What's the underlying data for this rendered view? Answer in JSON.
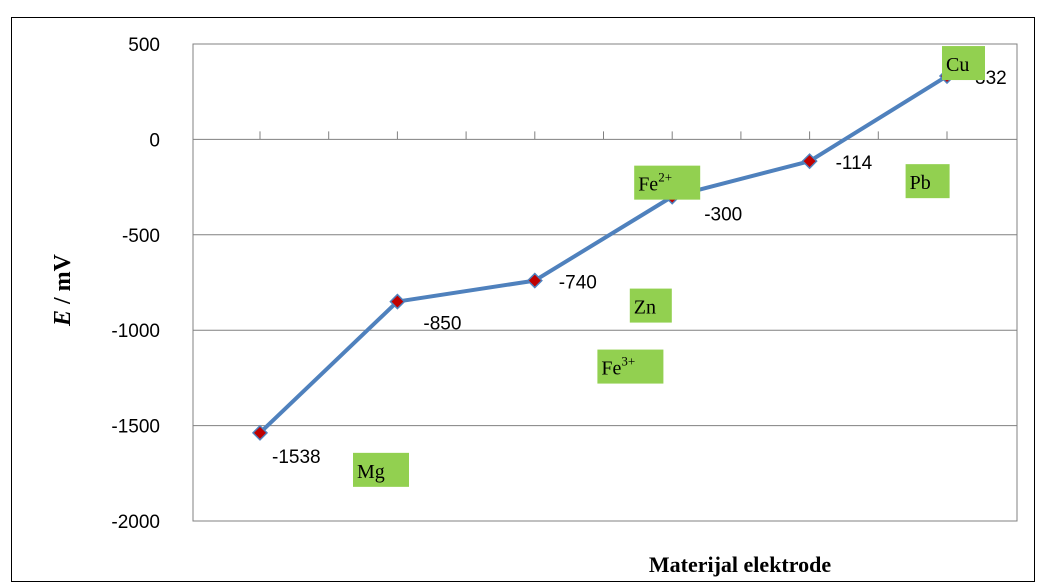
{
  "chart_data": {
    "type": "line",
    "xlabel": "Materijal elektrode",
    "ylabel_italic": "E",
    "ylabel_rest": " / mV",
    "ylim": [
      -2000,
      500
    ],
    "yticks": [
      500,
      0,
      -500,
      -1000,
      -1500,
      -2000
    ],
    "grid": "horizontal",
    "series": [
      {
        "values": [
          -1538,
          -850,
          -740,
          -300,
          -114,
          332
        ],
        "color": "#4F81BD",
        "marker_color": "#C00000"
      }
    ],
    "data_labels": [
      "-1538",
      "-850",
      "-740",
      "-300",
      "-114",
      "332"
    ],
    "metal_labels": [
      {
        "base": "Mg",
        "sup": ""
      },
      {
        "base": "Fe",
        "sup": "3+"
      },
      {
        "base": "Zn",
        "sup": ""
      },
      {
        "base": "Fe",
        "sup": "2+"
      },
      {
        "base": "Pb",
        "sup": ""
      },
      {
        "base": "Cu",
        "sup": ""
      }
    ],
    "label_bg_color": "#92D050"
  }
}
